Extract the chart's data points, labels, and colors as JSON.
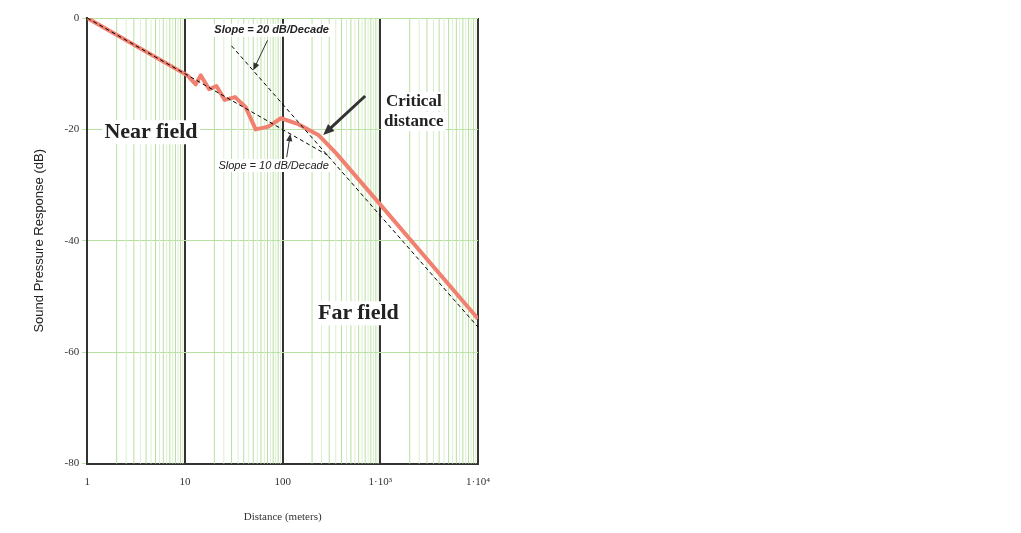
{
  "chart_data": {
    "type": "line",
    "xlabel": "Distance (meters)",
    "ylabel": "Sound Pressure Response (dB)",
    "log": "x",
    "grid": true,
    "legend": false,
    "marker": "none",
    "xlim": [
      1,
      10000
    ],
    "xticks": [
      1,
      10,
      100,
      {
        "value": 1000,
        "label": "1·10³"
      },
      {
        "value": 10000,
        "label": "1·10⁴"
      }
    ],
    "ylim": [
      -80,
      0
    ],
    "yticks": [
      -80,
      -60,
      -40,
      -20,
      0
    ],
    "series": [
      {
        "color": "#f08070",
        "line_style": "solid",
        "x": [
          1,
          10.6,
          12.9,
          14.5,
          17.7,
          21,
          25.5,
          32.6,
          41.8,
          53,
          71.5,
          96,
          142,
          232,
          354,
          1000,
          10000
        ],
        "values": [
          0,
          -10.3,
          -11.9,
          -10.3,
          -12.8,
          -12.2,
          -14.7,
          -14.2,
          -16,
          -20,
          -19.5,
          -18,
          -19,
          -21,
          -24.3,
          -33.5,
          -54
        ]
      },
      {
        "color": "#000000",
        "line_style": "dashed",
        "x": [
          1,
          300
        ],
        "values": [
          0,
          -24.8
        ]
      },
      {
        "color": "#000000",
        "line_style": "dashed",
        "x": [
          30,
          10000
        ],
        "values": [
          -5,
          -55.5
        ]
      }
    ],
    "annotations": [
      {
        "text": "Slope = 20 dB/Decade",
        "x": 50,
        "y": -9.4
      },
      {
        "text": "Slope = 10 dB/Decade",
        "x": 120,
        "y": -20.8
      },
      {
        "text": "Critical distance",
        "x": 260,
        "y": -21
      },
      "Near field",
      "Far field"
    ]
  }
}
